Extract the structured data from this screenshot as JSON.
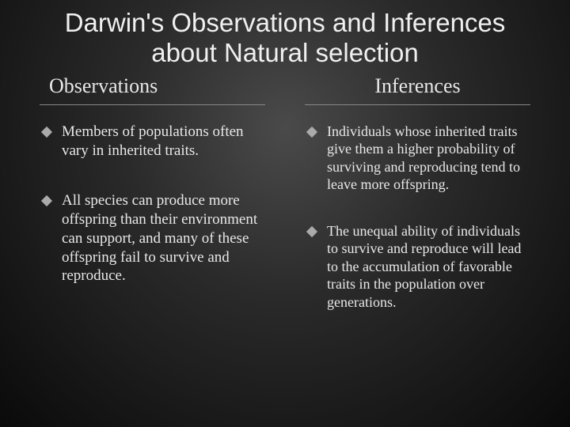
{
  "title": "Darwin's Observations and Inferences about Natural selection",
  "columns": {
    "left": {
      "header": "Observations",
      "items": [
        "Members of populations often vary in inherited traits.",
        "All species can produce more offspring than their environment can support, and many of these offspring fail to survive and reproduce."
      ]
    },
    "right": {
      "header": "Inferences",
      "items": [
        "Individuals whose inherited traits give them a higher probability of surviving and reproducing tend to leave more offspring.",
        "The unequal ability of individuals to survive and reproduce will lead to the accumulation of favorable traits in the population over generations."
      ]
    }
  },
  "colors": {
    "background_center": "#4a4a4a",
    "background_edge": "#0a0a0a",
    "text": "#e8e8e8",
    "divider": "#888888",
    "bullet": "#aaaaaa"
  },
  "typography": {
    "title_fontsize": 33,
    "header_fontsize": 26,
    "body_fontsize": 19,
    "title_family": "Arial",
    "body_family": "Georgia"
  }
}
